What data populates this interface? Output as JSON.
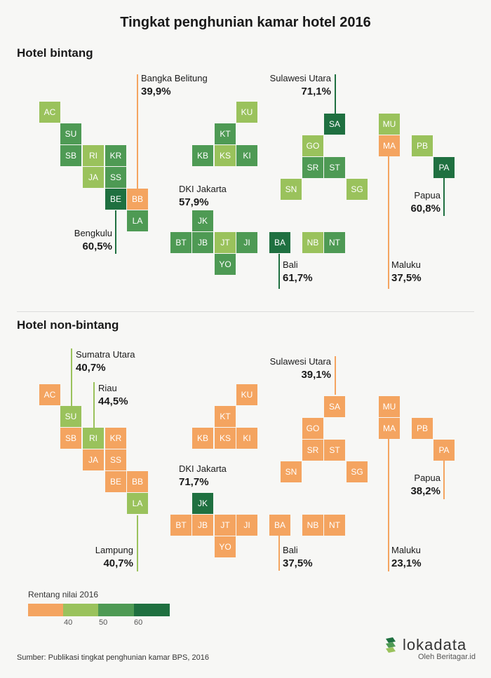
{
  "title": "Tingkat penghunian kamar hotel 2016",
  "colors": {
    "orange": "#f4a460",
    "light_green": "#9ac25c",
    "mid_green": "#4e9a54",
    "dark_green": "#1f7040"
  },
  "panels": [
    {
      "title": "Hotel bintang",
      "provinces": {
        "AC": "light_green",
        "SU": "mid_green",
        "SB": "mid_green",
        "RI": "light_green",
        "KR": "mid_green",
        "JA": "light_green",
        "SS": "mid_green",
        "BE": "dark_green",
        "BB": "orange",
        "LA": "mid_green",
        "KU": "light_green",
        "KT": "mid_green",
        "KB": "mid_green",
        "KS": "light_green",
        "KI": "mid_green",
        "JK": "mid_green",
        "BT": "mid_green",
        "JB": "mid_green",
        "JT": "light_green",
        "JI": "mid_green",
        "YO": "mid_green",
        "BA": "dark_green",
        "NB": "light_green",
        "NT": "mid_green",
        "SA": "dark_green",
        "GO": "light_green",
        "SR": "mid_green",
        "ST": "mid_green",
        "SN": "light_green",
        "SG": "light_green",
        "MU": "light_green",
        "MA": "orange",
        "PB": "light_green",
        "PA": "dark_green"
      },
      "callouts": [
        {
          "name": "Bangka Belitung",
          "value": "39,9%"
        },
        {
          "name": "Sulawesi Utara",
          "value": "71,1%"
        },
        {
          "name": "Bengkulu",
          "value": "60,5%"
        },
        {
          "name": "DKI Jakarta",
          "value": "57,9%"
        },
        {
          "name": "Bali",
          "value": "61,7%"
        },
        {
          "name": "Maluku",
          "value": "37,5%"
        },
        {
          "name": "Papua",
          "value": "60,8%"
        }
      ]
    },
    {
      "title": "Hotel non-bintang",
      "provinces": {
        "AC": "orange",
        "SU": "light_green",
        "SB": "orange",
        "RI": "light_green",
        "KR": "orange",
        "JA": "orange",
        "SS": "orange",
        "BE": "orange",
        "BB": "orange",
        "LA": "light_green",
        "KU": "orange",
        "KT": "orange",
        "KB": "orange",
        "KS": "orange",
        "KI": "orange",
        "JK": "dark_green",
        "BT": "orange",
        "JB": "orange",
        "JT": "orange",
        "JI": "orange",
        "YO": "orange",
        "BA": "orange",
        "NB": "orange",
        "NT": "orange",
        "SA": "orange",
        "GO": "orange",
        "SR": "orange",
        "ST": "orange",
        "SN": "orange",
        "SG": "orange",
        "MU": "orange",
        "MA": "orange",
        "PB": "orange",
        "PA": "orange"
      },
      "callouts": [
        {
          "name": "Sumatra Utara",
          "value": "40,7%"
        },
        {
          "name": "Riau",
          "value": "44,5%"
        },
        {
          "name": "Sulawesi Utara",
          "value": "39,1%"
        },
        {
          "name": "DKI Jakarta",
          "value": "71,7%"
        },
        {
          "name": "Bali",
          "value": "37,5%"
        },
        {
          "name": "Maluku",
          "value": "23,1%"
        },
        {
          "name": "Papua",
          "value": "38,2%"
        },
        {
          "name": "Lampung",
          "value": "40,7%"
        }
      ]
    }
  ],
  "legend": {
    "title": "Rentang nilai 2016",
    "ticks": [
      "40",
      "50",
      "60"
    ]
  },
  "source": "Sumber: Publikasi tingkat penghunian kamar BPS, 2016",
  "logo": {
    "brand": "lokadata",
    "byline": "Oleh Beritagar.id"
  }
}
